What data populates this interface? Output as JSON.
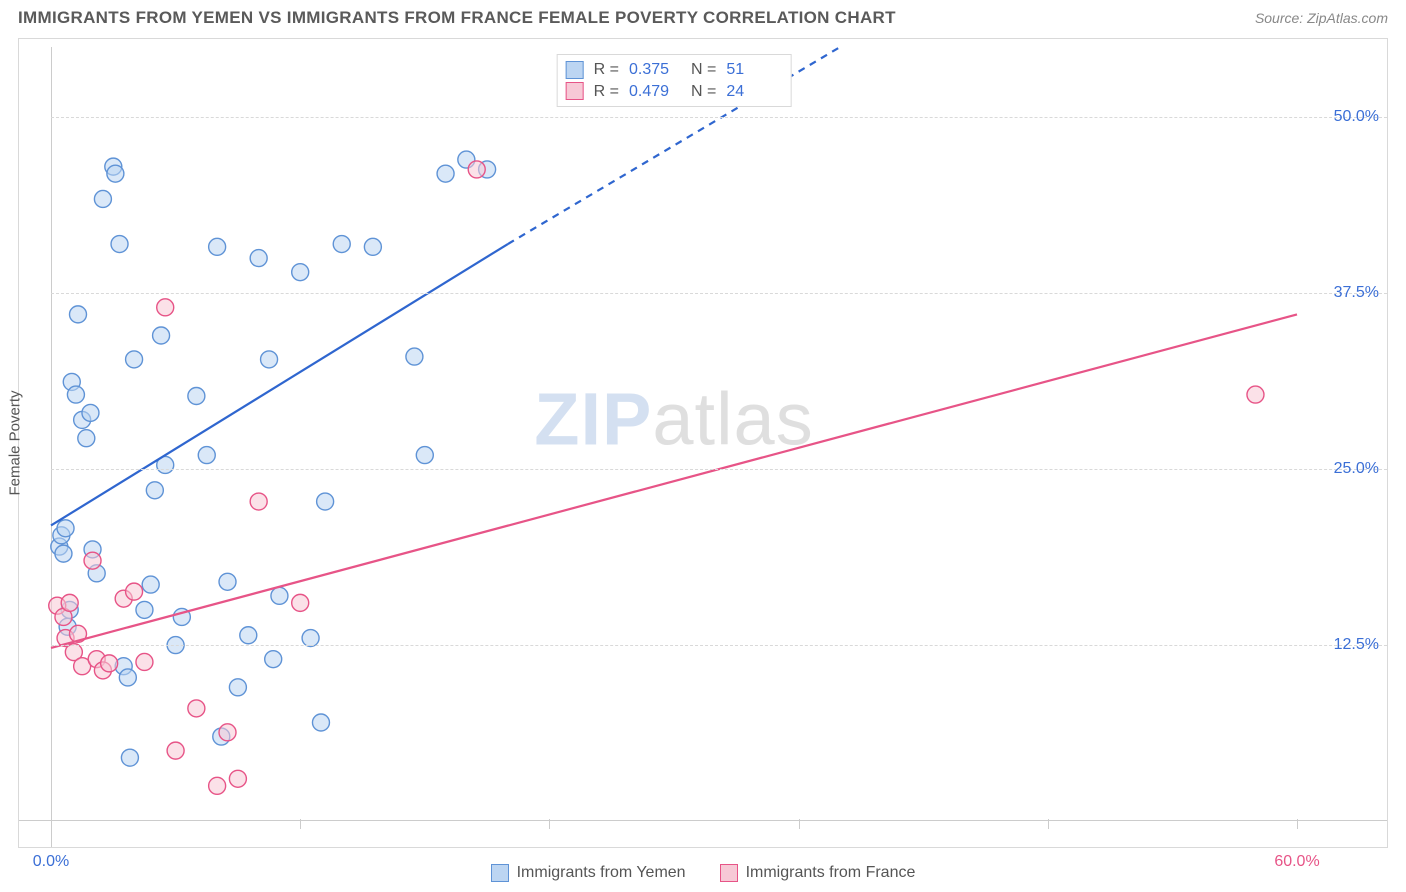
{
  "header": {
    "title": "IMMIGRANTS FROM YEMEN VS IMMIGRANTS FROM FRANCE FEMALE POVERTY CORRELATION CHART",
    "source": "Source: ZipAtlas.com"
  },
  "ylabel": "Female Poverty",
  "watermark": {
    "zip": "ZIP",
    "atlas": "atlas"
  },
  "chart": {
    "type": "scatter",
    "xlim": [
      0,
      60
    ],
    "ylim": [
      0,
      55
    ],
    "background_color": "#ffffff",
    "grid_color": "#d9d9d9",
    "grid_dash": "4,4",
    "yticks": [
      {
        "v": 12.5,
        "label": "12.5%"
      },
      {
        "v": 25.0,
        "label": "25.0%"
      },
      {
        "v": 37.5,
        "label": "37.5%"
      },
      {
        "v": 50.0,
        "label": "50.0%"
      }
    ],
    "xticks": [
      0,
      12,
      24,
      36,
      48,
      60
    ],
    "xlabels": [
      {
        "v": 0,
        "label": "0.0%",
        "color": "#3b6fd6"
      },
      {
        "v": 60,
        "label": "60.0%",
        "color": "#e75487"
      }
    ],
    "ytick_color": "#3b6fd6",
    "marker_radius": 8.5,
    "marker_opacity": 0.55,
    "marker_stroke_width": 1.4,
    "line_width": 2.2,
    "series": [
      {
        "key": "yemen",
        "label": "Immigrants from Yemen",
        "fill": "#bcd5f2",
        "stroke": "#5f93d6",
        "line_color": "#2f66cf",
        "R": "0.375",
        "N": "51",
        "trend": {
          "x1": 0,
          "y1": 21,
          "x2": 22,
          "y2": 41,
          "x2_dash": 38,
          "y2_dash": 55
        },
        "points": [
          [
            0.4,
            19.5
          ],
          [
            0.5,
            20.3
          ],
          [
            0.6,
            19.0
          ],
          [
            0.7,
            20.8
          ],
          [
            0.8,
            13.8
          ],
          [
            0.9,
            15.0
          ],
          [
            1.0,
            31.2
          ],
          [
            1.2,
            30.3
          ],
          [
            1.3,
            36.0
          ],
          [
            1.5,
            28.5
          ],
          [
            1.7,
            27.2
          ],
          [
            1.9,
            29.0
          ],
          [
            2.0,
            19.3
          ],
          [
            2.2,
            17.6
          ],
          [
            2.5,
            44.2
          ],
          [
            3.0,
            46.5
          ],
          [
            3.1,
            46.0
          ],
          [
            3.3,
            41.0
          ],
          [
            3.5,
            11.0
          ],
          [
            3.7,
            10.2
          ],
          [
            3.8,
            4.5
          ],
          [
            4.0,
            32.8
          ],
          [
            4.5,
            15.0
          ],
          [
            4.8,
            16.8
          ],
          [
            5.0,
            23.5
          ],
          [
            5.3,
            34.5
          ],
          [
            5.5,
            25.3
          ],
          [
            6.0,
            12.5
          ],
          [
            6.3,
            14.5
          ],
          [
            7.0,
            30.2
          ],
          [
            7.5,
            26.0
          ],
          [
            8.0,
            40.8
          ],
          [
            8.2,
            6.0
          ],
          [
            8.5,
            17.0
          ],
          [
            9.0,
            9.5
          ],
          [
            9.5,
            13.2
          ],
          [
            10.0,
            40.0
          ],
          [
            10.5,
            32.8
          ],
          [
            10.7,
            11.5
          ],
          [
            11.0,
            16.0
          ],
          [
            12.0,
            39.0
          ],
          [
            12.5,
            13.0
          ],
          [
            13.0,
            7.0
          ],
          [
            13.2,
            22.7
          ],
          [
            14.0,
            41.0
          ],
          [
            15.5,
            40.8
          ],
          [
            17.5,
            33.0
          ],
          [
            18.0,
            26.0
          ],
          [
            19.0,
            46.0
          ],
          [
            20.0,
            47.0
          ],
          [
            21.0,
            46.3
          ]
        ]
      },
      {
        "key": "france",
        "label": "Immigrants from France",
        "fill": "#f7c9d6",
        "stroke": "#e75487",
        "line_color": "#e75487",
        "R": "0.479",
        "N": "24",
        "trend": {
          "x1": 0,
          "y1": 12.3,
          "x2": 60,
          "y2": 36.0
        },
        "points": [
          [
            0.3,
            15.3
          ],
          [
            0.6,
            14.5
          ],
          [
            0.7,
            13.0
          ],
          [
            0.9,
            15.5
          ],
          [
            1.1,
            12.0
          ],
          [
            1.3,
            13.3
          ],
          [
            1.5,
            11.0
          ],
          [
            2.0,
            18.5
          ],
          [
            2.2,
            11.5
          ],
          [
            2.5,
            10.7
          ],
          [
            2.8,
            11.2
          ],
          [
            3.5,
            15.8
          ],
          [
            4.0,
            16.3
          ],
          [
            4.5,
            11.3
          ],
          [
            5.5,
            36.5
          ],
          [
            6.0,
            5.0
          ],
          [
            7.0,
            8.0
          ],
          [
            8.0,
            2.5
          ],
          [
            8.5,
            6.3
          ],
          [
            9.0,
            3.0
          ],
          [
            10.0,
            22.7
          ],
          [
            12.0,
            15.5
          ],
          [
            20.5,
            46.3
          ],
          [
            58.0,
            30.3
          ]
        ]
      }
    ]
  },
  "legend_stats_labels": {
    "R": "R =",
    "N": "N ="
  },
  "bottom_legend": [
    {
      "key": "yemen"
    },
    {
      "key": "france"
    }
  ]
}
